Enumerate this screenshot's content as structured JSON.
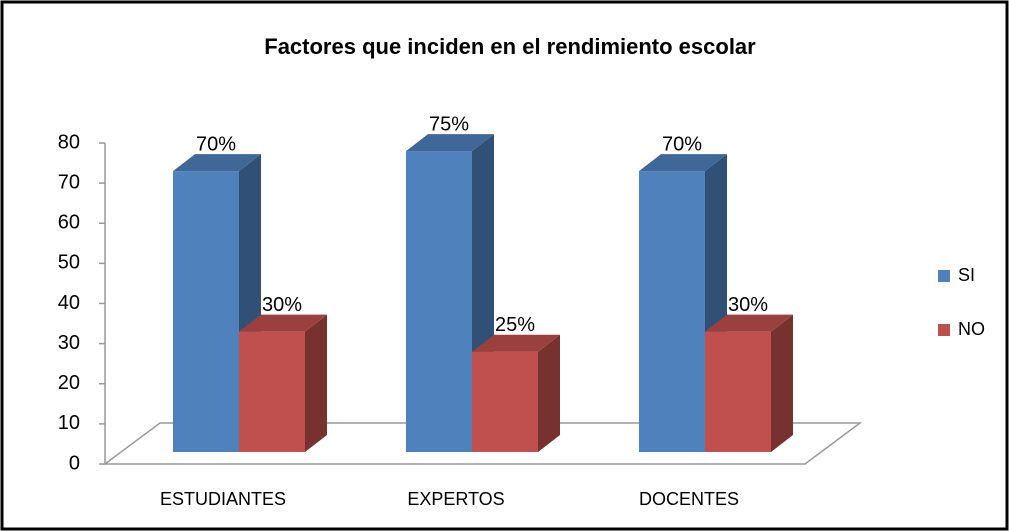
{
  "chart_data": {
    "type": "bar3d",
    "title": "Factores que inciden en el rendimiento escolar",
    "categories": [
      "ESTUDIANTES",
      "EXPERTOS",
      "DOCENTES"
    ],
    "series": [
      {
        "name": "SI",
        "color": "#4f81bd",
        "values": [
          70,
          75,
          70
        ],
        "value_labels": [
          "70%",
          "75%",
          "70%"
        ]
      },
      {
        "name": "NO",
        "color": "#c0504d",
        "values": [
          30,
          25,
          30
        ],
        "value_labels": [
          "30%",
          "25%",
          "30%"
        ]
      }
    ],
    "ylim": [
      0,
      80
    ],
    "yticks": [
      0,
      10,
      20,
      30,
      40,
      50,
      60,
      70,
      80
    ],
    "legend": "right"
  }
}
